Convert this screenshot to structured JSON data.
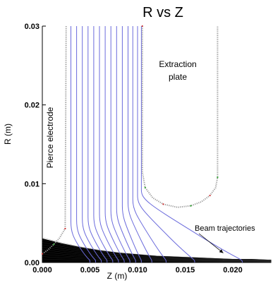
{
  "chart_data": {
    "type": "line",
    "title": "R vs Z",
    "xlabel": "Z (m)",
    "ylabel": "R (m)",
    "xlim": [
      0,
      0.024
    ],
    "ylim": [
      0,
      0.03
    ],
    "x_ticks": [
      {
        "value": 0.0,
        "label": "0.000"
      },
      {
        "value": 0.005,
        "label": "0.005"
      },
      {
        "value": 0.01,
        "label": "0.010"
      },
      {
        "value": 0.015,
        "label": "0.015"
      },
      {
        "value": 0.02,
        "label": "0.020"
      }
    ],
    "y_ticks": [
      {
        "value": 0.0,
        "label": "0.00"
      },
      {
        "value": 0.01,
        "label": "0.01"
      },
      {
        "value": 0.02,
        "label": "0.02"
      },
      {
        "value": 0.03,
        "label": "0.03"
      }
    ],
    "annotations": {
      "pierce_electrode": "Pierce electrode",
      "extraction_plate_line1": "Extraction",
      "extraction_plate_line2": "plate",
      "beam_trajectories": "Beam trajectories"
    },
    "pierce_electrode_boundary": [
      [
        0.0,
        0.0011
      ],
      [
        0.0006,
        0.0016
      ],
      [
        0.0012,
        0.0023
      ],
      [
        0.0018,
        0.0031
      ],
      [
        0.0024,
        0.0043
      ],
      [
        0.0025,
        0.03
      ]
    ],
    "extraction_plate_boundary": [
      [
        0.0105,
        0.03
      ],
      [
        0.0105,
        0.0115
      ],
      [
        0.0108,
        0.0095
      ],
      [
        0.0116,
        0.0082
      ],
      [
        0.0127,
        0.0074
      ],
      [
        0.0142,
        0.007
      ],
      [
        0.0156,
        0.0072
      ],
      [
        0.0167,
        0.0077
      ],
      [
        0.0176,
        0.0085
      ],
      [
        0.0182,
        0.0095
      ],
      [
        0.0184,
        0.0108
      ],
      [
        0.0184,
        0.03
      ]
    ],
    "equipotential_lines": [
      {
        "x_start": 0.003,
        "x_end": 0.005,
        "y_turn": 0.0032,
        "y_end": 0.0
      },
      {
        "x_start": 0.0036,
        "x_end": 0.0056,
        "y_turn": 0.0034,
        "y_end": 0.0
      },
      {
        "x_start": 0.0042,
        "x_end": 0.0062,
        "y_turn": 0.0036,
        "y_end": 0.0
      },
      {
        "x_start": 0.0048,
        "x_end": 0.0068,
        "y_turn": 0.0038,
        "y_end": 0.0
      },
      {
        "x_start": 0.0054,
        "x_end": 0.0074,
        "y_turn": 0.004,
        "y_end": 0.0
      },
      {
        "x_start": 0.006,
        "x_end": 0.008,
        "y_turn": 0.0042,
        "y_end": 0.0
      },
      {
        "x_start": 0.0066,
        "x_end": 0.0086,
        "y_turn": 0.0044,
        "y_end": 0.0
      },
      {
        "x_start": 0.0072,
        "x_end": 0.0092,
        "y_turn": 0.0046,
        "y_end": 0.0
      },
      {
        "x_start": 0.0078,
        "x_end": 0.0098,
        "y_turn": 0.0049,
        "y_end": 0.0
      },
      {
        "x_start": 0.0084,
        "x_end": 0.0104,
        "y_turn": 0.0052,
        "y_end": 0.0
      },
      {
        "x_start": 0.009,
        "x_end": 0.0115,
        "y_turn": 0.0056,
        "y_end": 0.0
      },
      {
        "x_start": 0.0095,
        "x_end": 0.013,
        "y_turn": 0.006,
        "y_end": 0.0
      },
      {
        "x_start": 0.01,
        "x_end": 0.016,
        "y_turn": 0.0065,
        "y_end": 0.0
      },
      {
        "x_start": 0.0104,
        "x_end": 0.021,
        "y_turn": 0.0072,
        "y_end": 0.0
      }
    ],
    "beam_envelope": {
      "x": [
        0.0,
        0.002,
        0.004,
        0.006,
        0.008,
        0.01,
        0.012,
        0.014,
        0.016,
        0.018,
        0.02,
        0.022,
        0.024
      ],
      "r": [
        0.003,
        0.0024,
        0.0019,
        0.0015,
        0.0012,
        0.001,
        0.0008,
        0.0007,
        0.0006,
        0.0005,
        0.0004,
        0.0004,
        0.0003
      ]
    },
    "colors": {
      "equipotential": "#6b6bdc",
      "beam": "#000000",
      "electrode_dots": "#999999",
      "electrode_red": "#cc3333",
      "electrode_green": "#33aa33",
      "axis": "#000000"
    },
    "grid": false
  }
}
